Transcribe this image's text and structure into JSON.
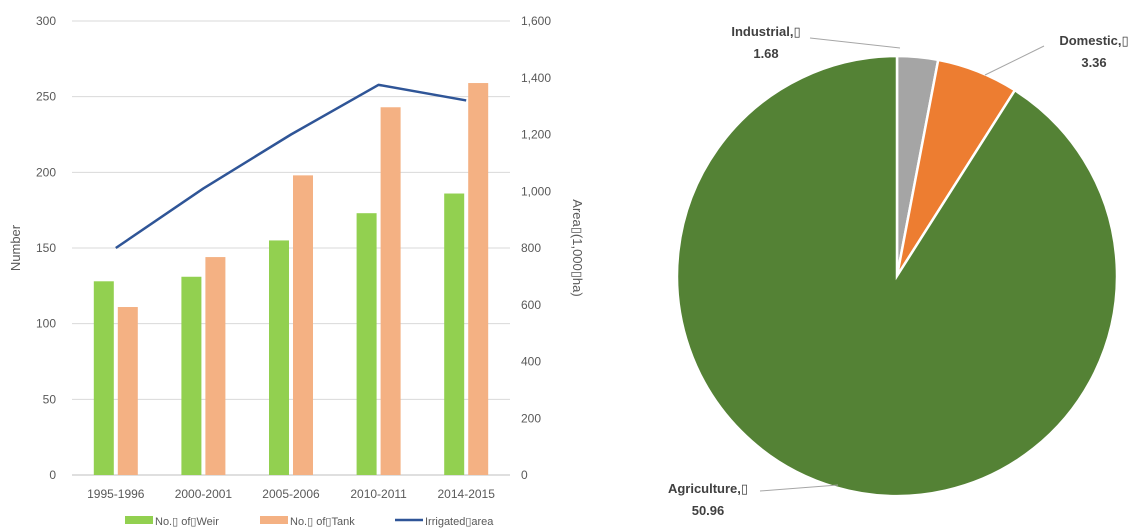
{
  "chart_data": [
    {
      "type": "bar",
      "categories": [
        "1995-1996",
        "2000-2001",
        "2005-2006",
        "2010-2011",
        "2014-2015"
      ],
      "series": [
        {
          "name": "No.▯ of▯Weir",
          "type": "bar",
          "axis": "left",
          "color": "#92d050",
          "values": [
            128,
            131,
            155,
            173,
            186
          ]
        },
        {
          "name": "No.▯ of▯Tank",
          "type": "bar",
          "axis": "left",
          "color": "#f4b183",
          "values": [
            111,
            144,
            198,
            243,
            259
          ]
        },
        {
          "name": "Irrigated▯area",
          "type": "line",
          "axis": "right",
          "color": "#2f5597",
          "values": [
            800,
            1010,
            1200,
            1375,
            1320
          ]
        }
      ],
      "ylabel": "Number",
      "y2label": "Area▯(1,000▯ha)",
      "ylim": [
        0,
        300
      ],
      "y2lim": [
        0,
        1600
      ],
      "yticks": [
        "0",
        "50",
        "100",
        "150",
        "200",
        "250",
        "300"
      ],
      "y2ticks": [
        "0",
        "200",
        "400",
        "600",
        "800",
        "1,000",
        "1,200",
        "1,400",
        "1,600"
      ],
      "grid": true,
      "legend": "bottom"
    },
    {
      "type": "pie",
      "slices": [
        {
          "label": "Industrial,▯",
          "value": 1.68,
          "value_label": "1.68",
          "color": "#a5a5a5"
        },
        {
          "label": "Domestic,▯",
          "value": 3.36,
          "value_label": "3.36",
          "color": "#ed7d31"
        },
        {
          "label": "Agriculture,▯",
          "value": 50.96,
          "value_label": "50.96",
          "color": "#548235"
        }
      ]
    }
  ]
}
